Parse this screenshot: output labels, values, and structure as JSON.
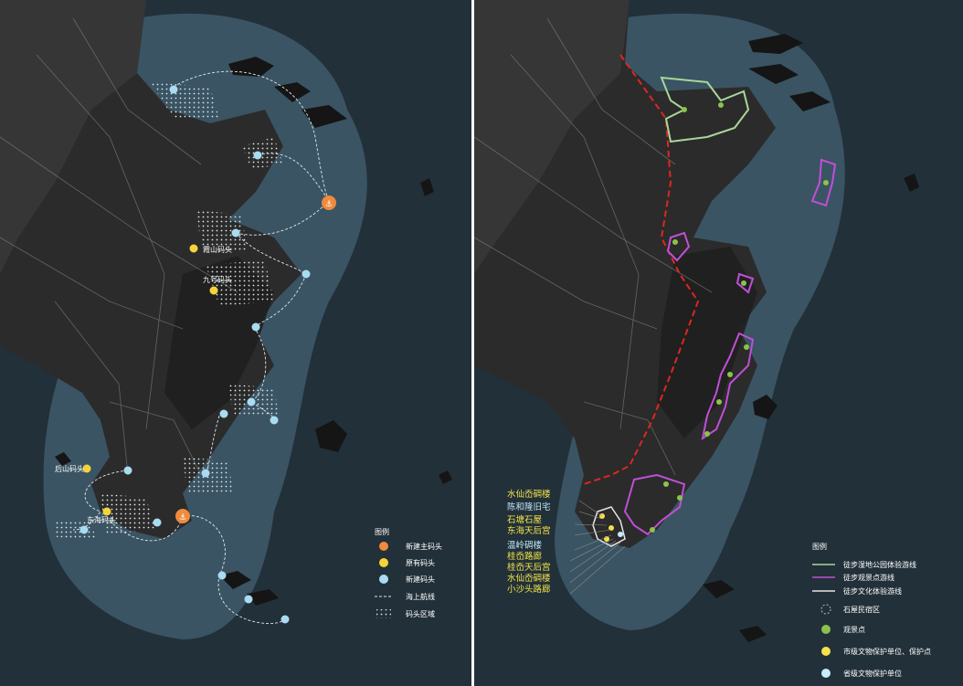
{
  "left_map": {
    "pier_labels": [
      {
        "name": "霞山码头",
        "type": "existing"
      },
      {
        "name": "九号码头",
        "type": "existing"
      },
      {
        "name": "后山码头",
        "type": "existing"
      },
      {
        "name": "东海码头",
        "type": "existing"
      }
    ],
    "legend": {
      "title": "图例",
      "items": [
        {
          "label": "新建主码头",
          "symbol": "orange-anchor-icon",
          "color": "#f08a3c"
        },
        {
          "label": "原有码头",
          "symbol": "yellow-anchor-icon",
          "color": "#f5d43b"
        },
        {
          "label": "新建码头",
          "symbol": "blue-anchor-icon",
          "color": "#a9dcf2"
        },
        {
          "label": "海上航线",
          "symbol": "dashed-line",
          "color": "#dfe8ee"
        },
        {
          "label": "码头区域",
          "symbol": "dotted-pattern",
          "color": "#d8e2e8"
        }
      ]
    }
  },
  "right_map": {
    "site_labels": [
      {
        "text": "水仙岙碉楼",
        "color": "#f2e24a"
      },
      {
        "text": "陈和隆旧宅",
        "color": "#bfe6f6"
      },
      {
        "text": "石塘石屋",
        "color": "#f2e24a"
      },
      {
        "text": "东海天后宫",
        "color": "#f2e24a"
      },
      {
        "text": "温岭碉楼",
        "color": "#bfe6f6"
      },
      {
        "text": "桂岙路廊",
        "color": "#f2e24a"
      },
      {
        "text": "桂岙天后宫",
        "color": "#f2e24a"
      },
      {
        "text": "水仙岙碉楼",
        "color": "#f2e24a"
      },
      {
        "text": "小沙头路廊",
        "color": "#f2e24a"
      }
    ],
    "legend": {
      "title": "图例",
      "items": [
        {
          "label": "徒步湿地公园体验游线",
          "symbol": "green-line",
          "color": "#a7d79a"
        },
        {
          "label": "徒步观景点游线",
          "symbol": "purple-line",
          "color": "#c04fd6"
        },
        {
          "label": "徒步文化体验游线",
          "symbol": "white-line",
          "color": "#e6e6e6"
        },
        {
          "label": "石屋民宿区",
          "symbol": "dashed-circle",
          "color": "#bbbbbb"
        },
        {
          "label": "观景点",
          "symbol": "green-dot",
          "color": "#8bc34a"
        },
        {
          "label": "市级文物保护单位、保护点",
          "symbol": "yellow-dot",
          "color": "#f7e04a"
        },
        {
          "label": "省级文物保护单位",
          "symbol": "lightblue-dot",
          "color": "#c7ecfb"
        }
      ]
    }
  }
}
